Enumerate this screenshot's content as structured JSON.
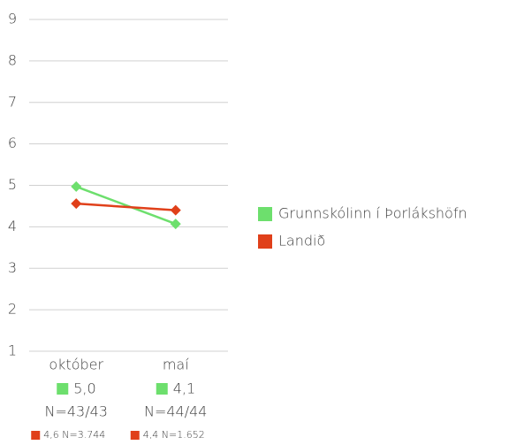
{
  "chart_data": {
    "type": "line",
    "categories": [
      "október",
      "maí"
    ],
    "series": [
      {
        "name": "Grunnskólinn í Þorlákshöfn",
        "color": "#6ddf6d",
        "values": [
          4.97,
          4.07
        ],
        "value_labels": [
          "5,0",
          "4,1"
        ],
        "n_labels": [
          "N=43/43",
          "N=44/44"
        ]
      },
      {
        "name": "Landið",
        "color": "#e0401a",
        "values": [
          4.56,
          4.4
        ],
        "value_labels": [
          "4,6",
          "4,4"
        ],
        "n_labels": [
          "N=3.744",
          "N=1.652"
        ]
      }
    ],
    "ylim": [
      1,
      9
    ],
    "yticks": [
      1,
      2,
      3,
      4,
      5,
      6,
      7,
      8,
      9
    ],
    "grid": true,
    "legend": "right"
  }
}
